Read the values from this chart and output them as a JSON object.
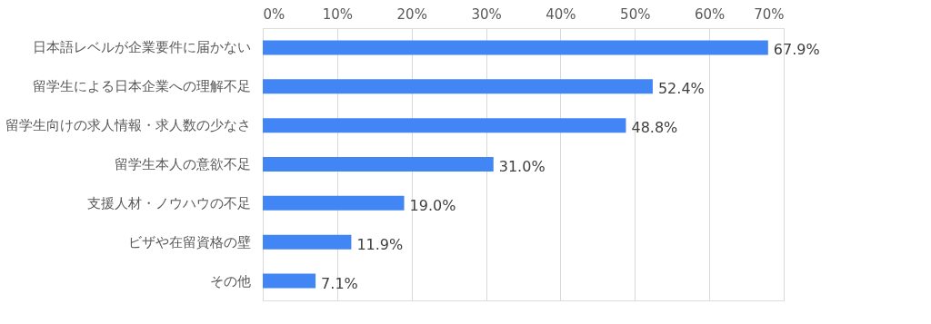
{
  "chart_data": {
    "type": "bar",
    "orientation": "horizontal",
    "categories": [
      "日本語レベルが企業要件に届かない",
      "留学生による日本企業への理解不足",
      "留学生向けの求人情報・求人数の少なさ",
      "留学生本人の意欲不足",
      "支援人材・ノウハウの不足",
      "ビザや在留資格の壁",
      "その他"
    ],
    "values": [
      67.9,
      52.4,
      48.8,
      31.0,
      19.0,
      11.9,
      7.1
    ],
    "value_labels": [
      "67.9%",
      "52.4%",
      "48.8%",
      "31.0%",
      "19.0%",
      "11.9%",
      "7.1%"
    ],
    "color": "#4285f4",
    "xlim": [
      0,
      70
    ],
    "xticks": [
      {
        "value": 0,
        "label": "0%"
      },
      {
        "value": 10,
        "label": "10%"
      },
      {
        "value": 20,
        "label": "20%"
      },
      {
        "value": 30,
        "label": "30%"
      },
      {
        "value": 40,
        "label": "40%"
      },
      {
        "value": 50,
        "label": "50%"
      },
      {
        "value": 60,
        "label": "60%"
      },
      {
        "value": 70,
        "label": "70%"
      }
    ],
    "grid": "x"
  }
}
